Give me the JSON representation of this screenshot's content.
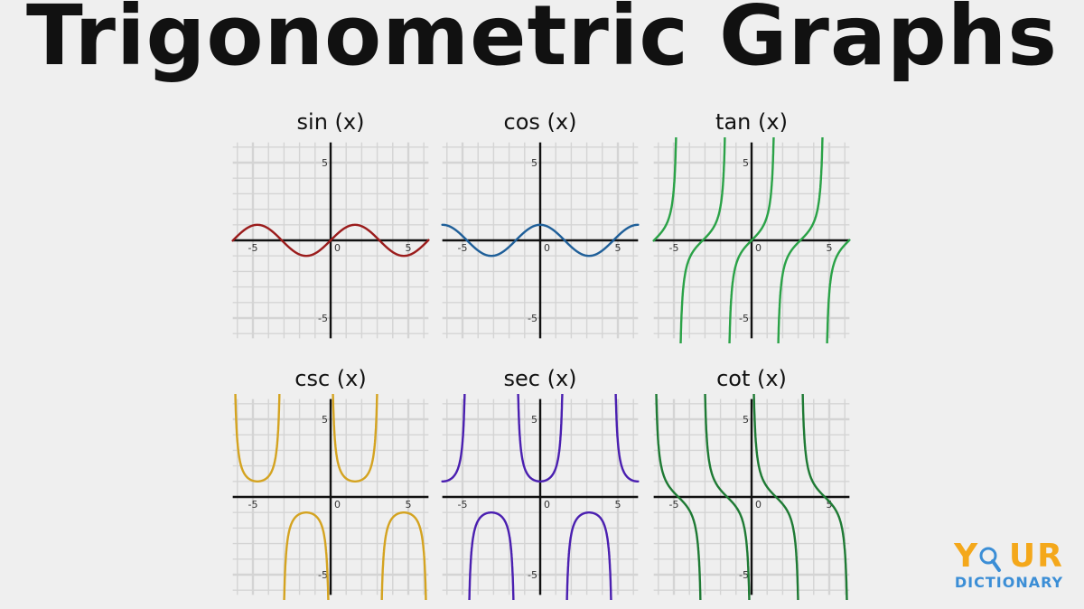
{
  "title": "Trigonometric Graphs",
  "logo": {
    "word_start": "Y",
    "word_o": "O",
    "word_end": "UR",
    "sub": "DICTIONARY",
    "colors": {
      "word": "#f4a81b",
      "sub": "#3b8ed6"
    },
    "icon": "magnifier-icon"
  },
  "chart_data": [
    {
      "type": "line",
      "title": "sin (x)",
      "function": "sin",
      "color": "#9b1c1c",
      "xlim": [
        -6.3,
        6.3
      ],
      "ylim": [
        -6.3,
        6.3
      ],
      "grid": true,
      "x_ticks": [
        "-5",
        "0",
        "5"
      ],
      "y_ticks": [
        "5",
        "-5"
      ]
    },
    {
      "type": "line",
      "title": "cos (x)",
      "function": "cos",
      "color": "#1f5f99",
      "xlim": [
        -6.3,
        6.3
      ],
      "ylim": [
        -6.3,
        6.3
      ],
      "grid": true,
      "x_ticks": [
        "-5",
        "0",
        "5"
      ],
      "y_ticks": [
        "5",
        "-5"
      ]
    },
    {
      "type": "line",
      "title": "tan (x)",
      "function": "tan",
      "color": "#2aa247",
      "xlim": [
        -6.3,
        6.3
      ],
      "ylim": [
        -6.3,
        6.3
      ],
      "grid": true,
      "x_ticks": [
        "-5",
        "0",
        "5"
      ],
      "y_ticks": [
        "5",
        "-5"
      ]
    },
    {
      "type": "line",
      "title": "csc (x)",
      "function": "csc",
      "color": "#d4a320",
      "xlim": [
        -6.3,
        6.3
      ],
      "ylim": [
        -6.3,
        6.3
      ],
      "grid": true,
      "x_ticks": [
        "-5",
        "0",
        "5"
      ],
      "y_ticks": [
        "5",
        "-5"
      ]
    },
    {
      "type": "line",
      "title": "sec (x)",
      "function": "sec",
      "color": "#4a1fb0",
      "xlim": [
        -6.3,
        6.3
      ],
      "ylim": [
        -6.3,
        6.3
      ],
      "grid": true,
      "x_ticks": [
        "-5",
        "0",
        "5"
      ],
      "y_ticks": [
        "5",
        "-5"
      ]
    },
    {
      "type": "line",
      "title": "cot (x)",
      "function": "cot",
      "color": "#1e7a34",
      "xlim": [
        -6.3,
        6.3
      ],
      "ylim": [
        -6.3,
        6.3
      ],
      "grid": true,
      "x_ticks": [
        "-5",
        "0",
        "5"
      ],
      "y_ticks": [
        "5",
        "-5"
      ]
    }
  ]
}
